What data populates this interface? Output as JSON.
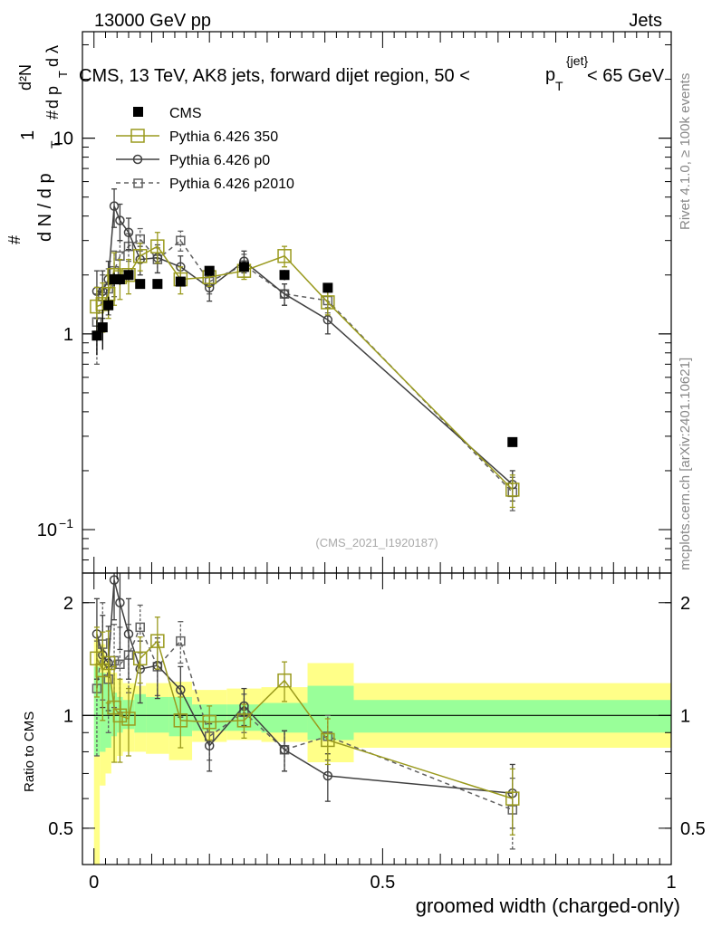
{
  "header": {
    "left": "13000 GeV pp",
    "right": "Jets",
    "title_main": "CMS, 13 TeV, AK8 jets, forward dijet region, 50 <",
    "title_p": "p",
    "title_sup": "{jet}",
    "title_sub": "T",
    "title_end": "< 65 GeV"
  },
  "side_text": {
    "rivet": "Rivet 4.1.0, ≥ 100k events",
    "mcplots": "mcplots.cern.ch [arXiv:2401.10621]"
  },
  "watermark": "(CMS_2021_I1920187)",
  "colors": {
    "data": "#000000",
    "p350": "#9a9a1e",
    "p0": "#404040",
    "p2010": "#606060",
    "band_inner": "#99ff99",
    "band_outer": "#ffff88"
  },
  "chart_data": [
    {
      "type": "scatter",
      "name": "main",
      "yscale": "log",
      "ylim": [
        0.06,
        35
      ],
      "xlim": [
        -0.02,
        1.0
      ],
      "ylabel_parts": {
        "one": "1",
        "hash1": "#",
        "dN": "d N / d p",
        "sub1": "T",
        "hash2": "#",
        "d2N": "d²N",
        "dpt": "d p",
        "sub2": "T",
        "dl": "d λ"
      },
      "yticks": [
        {
          "v": 10,
          "label": "10"
        },
        {
          "v": 1,
          "label": "1"
        },
        {
          "v": 0.1,
          "label": "10",
          "sup": "−1"
        }
      ],
      "legend": [
        {
          "name": "CMS",
          "key": "data"
        },
        {
          "name": "Pythia 6.426 350",
          "key": "p350"
        },
        {
          "name": "Pythia 6.426 p0",
          "key": "p0"
        },
        {
          "name": "Pythia 6.426 p2010",
          "key": "p2010"
        }
      ],
      "x": [
        0.005,
        0.015,
        0.025,
        0.035,
        0.045,
        0.06,
        0.08,
        0.11,
        0.15,
        0.2,
        0.26,
        0.33,
        0.405,
        0.725
      ],
      "series": [
        {
          "key": "data",
          "values": [
            0.98,
            1.08,
            1.4,
            1.9,
            1.9,
            2.0,
            1.8,
            1.8,
            1.85,
            2.1,
            2.2,
            2.0,
            1.72,
            0.28
          ],
          "errors": [
            0.2,
            0.25,
            0.15,
            0.15,
            0.12,
            0.12,
            0.1,
            0.1,
            0.1,
            0.1,
            0.12,
            0.12,
            0.1,
            0.015
          ]
        },
        {
          "key": "p350",
          "values": [
            1.38,
            1.42,
            1.6,
            2.0,
            1.95,
            2.0,
            2.5,
            2.8,
            1.9,
            1.95,
            2.1,
            2.5,
            1.45,
            0.16
          ],
          "errors": [
            0.35,
            0.4,
            0.4,
            0.6,
            0.45,
            0.4,
            0.4,
            0.5,
            0.3,
            0.2,
            0.2,
            0.3,
            0.2,
            0.03
          ]
        },
        {
          "key": "p0",
          "values": [
            1.65,
            1.65,
            1.9,
            4.5,
            3.8,
            3.3,
            2.4,
            2.45,
            2.2,
            1.72,
            2.35,
            1.6,
            1.18,
            0.17
          ],
          "errors": [
            0.45,
            0.45,
            0.45,
            1.0,
            0.8,
            0.6,
            0.4,
            0.4,
            0.3,
            0.25,
            0.3,
            0.2,
            0.18,
            0.03
          ]
        },
        {
          "key": "p2010",
          "values": [
            1.15,
            1.55,
            1.7,
            2.1,
            2.5,
            2.8,
            3.05,
            2.4,
            3.0,
            1.85,
            2.25,
            1.6,
            1.48,
            0.155
          ],
          "errors": [
            0.45,
            0.45,
            0.45,
            0.55,
            0.5,
            0.45,
            0.4,
            0.35,
            0.35,
            0.25,
            0.3,
            0.2,
            0.2,
            0.03
          ]
        }
      ]
    },
    {
      "type": "scatter",
      "name": "ratio",
      "yscale": "log",
      "ylim": [
        0.4,
        2.4
      ],
      "xlim": [
        -0.02,
        1.0
      ],
      "ylabel": "Ratio to CMS",
      "xlabel": "groomed width (charged-only)",
      "yticks": [
        {
          "v": 2,
          "label": "2"
        },
        {
          "v": 1,
          "label": "1"
        },
        {
          "v": 0.5,
          "label": "0.5"
        }
      ],
      "xticks": [
        {
          "v": 0,
          "label": "0"
        },
        {
          "v": 0.5,
          "label": "0.5"
        },
        {
          "v": 1,
          "label": "1"
        }
      ],
      "bands": [
        {
          "x0": 0.0,
          "x1": 0.01,
          "inner": [
            0.78,
            1.35
          ],
          "outer": [
            0.4,
            1.6
          ]
        },
        {
          "x0": 0.01,
          "x1": 0.02,
          "inner": [
            0.8,
            1.3
          ],
          "outer": [
            0.65,
            1.55
          ]
        },
        {
          "x0": 0.02,
          "x1": 0.03,
          "inner": [
            0.82,
            1.22
          ],
          "outer": [
            0.7,
            1.4
          ]
        },
        {
          "x0": 0.03,
          "x1": 0.04,
          "inner": [
            0.88,
            1.15
          ],
          "outer": [
            0.75,
            1.3
          ]
        },
        {
          "x0": 0.04,
          "x1": 0.05,
          "inner": [
            0.9,
            1.12
          ],
          "outer": [
            0.78,
            1.25
          ]
        },
        {
          "x0": 0.05,
          "x1": 0.07,
          "inner": [
            0.92,
            1.1
          ],
          "outer": [
            0.8,
            1.22
          ]
        },
        {
          "x0": 0.07,
          "x1": 0.09,
          "inner": [
            0.9,
            1.14
          ],
          "outer": [
            0.8,
            1.2
          ]
        },
        {
          "x0": 0.09,
          "x1": 0.13,
          "inner": [
            0.9,
            1.12
          ],
          "outer": [
            0.79,
            1.22
          ]
        },
        {
          "x0": 0.13,
          "x1": 0.17,
          "inner": [
            0.88,
            1.12
          ],
          "outer": [
            0.76,
            1.23
          ]
        },
        {
          "x0": 0.17,
          "x1": 0.23,
          "inner": [
            0.91,
            1.07
          ],
          "outer": [
            0.85,
            1.17
          ]
        },
        {
          "x0": 0.23,
          "x1": 0.29,
          "inner": [
            0.91,
            1.07
          ],
          "outer": [
            0.86,
            1.18
          ]
        },
        {
          "x0": 0.29,
          "x1": 0.37,
          "inner": [
            0.9,
            1.08
          ],
          "outer": [
            0.85,
            1.19
          ]
        },
        {
          "x0": 0.37,
          "x1": 0.45,
          "inner": [
            0.86,
            1.2
          ],
          "outer": [
            0.75,
            1.38
          ]
        },
        {
          "x0": 0.45,
          "x1": 1.0,
          "inner": [
            0.9,
            1.1
          ],
          "outer": [
            0.82,
            1.22
          ]
        }
      ],
      "x": [
        0.005,
        0.015,
        0.025,
        0.035,
        0.045,
        0.06,
        0.08,
        0.11,
        0.15,
        0.2,
        0.26,
        0.33,
        0.405,
        0.725
      ],
      "series": [
        {
          "key": "p350",
          "values": [
            1.42,
            1.32,
            1.38,
            1.05,
            1.0,
            0.98,
            1.42,
            1.58,
            0.97,
            0.96,
            0.97,
            1.24,
            0.86,
            0.6
          ],
          "errors": [
            0.3,
            0.35,
            0.3,
            0.3,
            0.25,
            0.2,
            0.2,
            0.25,
            0.15,
            0.1,
            0.1,
            0.15,
            0.12,
            0.12
          ]
        },
        {
          "key": "p0",
          "values": [
            1.65,
            1.45,
            1.38,
            2.3,
            2.0,
            1.65,
            1.33,
            1.36,
            1.17,
            0.83,
            1.06,
            0.81,
            0.69,
            0.62
          ],
          "errors": [
            0.4,
            0.4,
            0.35,
            0.5,
            0.5,
            0.4,
            0.25,
            0.25,
            0.18,
            0.12,
            0.12,
            0.1,
            0.1,
            0.12
          ]
        },
        {
          "key": "p2010",
          "values": [
            1.18,
            1.55,
            1.25,
            1.4,
            1.37,
            1.45,
            1.72,
            1.35,
            1.58,
            0.88,
            1.02,
            0.81,
            0.88,
            0.56
          ],
          "errors": [
            0.4,
            0.45,
            0.35,
            0.35,
            0.35,
            0.3,
            0.25,
            0.22,
            0.2,
            0.12,
            0.12,
            0.1,
            0.12,
            0.12
          ]
        }
      ]
    }
  ]
}
